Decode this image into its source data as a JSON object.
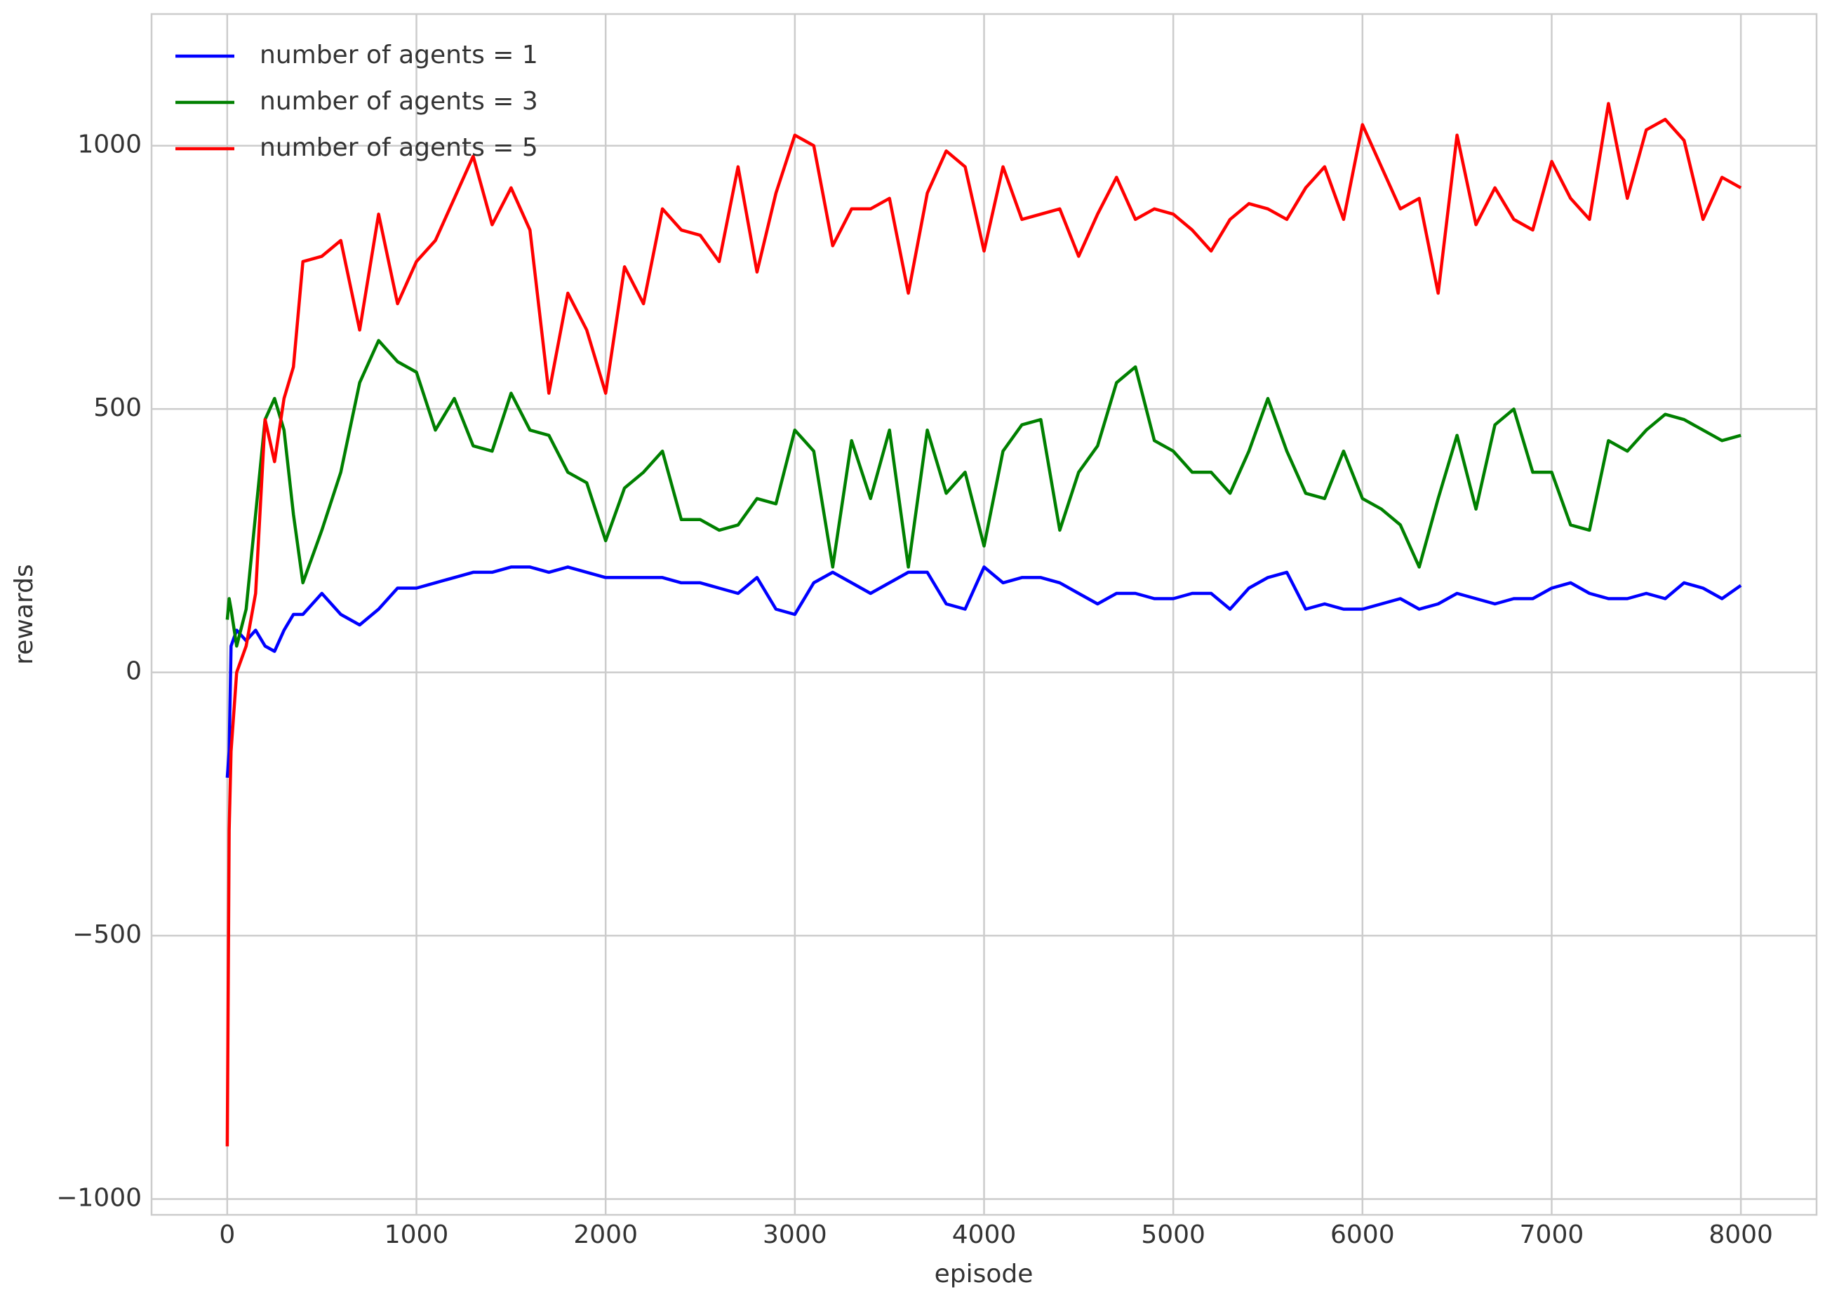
{
  "chart_data": {
    "type": "line",
    "xlabel": "episode",
    "ylabel": "rewards",
    "x": [
      0,
      10,
      20,
      50,
      100,
      150,
      200,
      250,
      300,
      350,
      400,
      500,
      600,
      700,
      800,
      900,
      1000,
      1100,
      1200,
      1300,
      1400,
      1500,
      1600,
      1700,
      1800,
      1900,
      2000,
      2100,
      2200,
      2300,
      2400,
      2500,
      2600,
      2700,
      2800,
      2900,
      3000,
      3100,
      3200,
      3300,
      3400,
      3500,
      3600,
      3700,
      3800,
      3900,
      4000,
      4100,
      4200,
      4300,
      4400,
      4500,
      4600,
      4700,
      4800,
      4900,
      5000,
      5100,
      5200,
      5300,
      5400,
      5500,
      5600,
      5700,
      5800,
      5900,
      6000,
      6100,
      6200,
      6300,
      6400,
      6500,
      6600,
      6700,
      6800,
      6900,
      7000,
      7100,
      7200,
      7300,
      7400,
      7500,
      7600,
      7700,
      7800,
      7900,
      8000
    ],
    "series": [
      {
        "name": "number of agents = 1",
        "color": "#0000ff",
        "values": [
          -200,
          -150,
          50,
          80,
          60,
          80,
          50,
          40,
          80,
          110,
          110,
          150,
          110,
          90,
          120,
          160,
          160,
          170,
          180,
          190,
          190,
          200,
          200,
          190,
          200,
          190,
          180,
          180,
          180,
          180,
          170,
          170,
          160,
          150,
          180,
          120,
          110,
          170,
          190,
          170,
          150,
          170,
          190,
          190,
          130,
          120,
          200,
          170,
          180,
          180,
          170,
          150,
          130,
          150,
          150,
          140,
          140,
          150,
          150,
          120,
          160,
          180,
          190,
          120,
          130,
          120,
          120,
          130,
          140,
          120,
          130,
          150,
          140,
          130,
          140,
          140,
          160,
          170,
          150,
          140,
          140,
          150,
          140,
          170,
          160,
          140,
          165
        ]
      },
      {
        "name": "number of agents = 3",
        "color": "#008000",
        "values": [
          100,
          140,
          120,
          50,
          120,
          300,
          480,
          520,
          460,
          300,
          170,
          270,
          380,
          550,
          630,
          590,
          570,
          460,
          520,
          430,
          420,
          530,
          460,
          450,
          380,
          360,
          250,
          350,
          380,
          420,
          290,
          290,
          270,
          280,
          330,
          320,
          460,
          420,
          200,
          440,
          330,
          460,
          200,
          460,
          340,
          380,
          240,
          420,
          470,
          480,
          270,
          380,
          430,
          550,
          580,
          440,
          420,
          380,
          380,
          340,
          420,
          520,
          420,
          340,
          330,
          420,
          330,
          310,
          280,
          200,
          330,
          450,
          310,
          470,
          500,
          380,
          380,
          280,
          270,
          440,
          420,
          460,
          490,
          480,
          460,
          440,
          450
        ]
      },
      {
        "name": "number of agents = 5",
        "color": "#ff0000",
        "values": [
          -900,
          -300,
          -150,
          0,
          50,
          150,
          480,
          400,
          520,
          580,
          780,
          790,
          820,
          650,
          870,
          700,
          780,
          820,
          900,
          980,
          850,
          920,
          840,
          530,
          720,
          650,
          530,
          770,
          700,
          880,
          840,
          830,
          780,
          960,
          760,
          910,
          1020,
          1000,
          810,
          880,
          880,
          900,
          720,
          910,
          990,
          960,
          800,
          960,
          860,
          870,
          880,
          790,
          870,
          940,
          860,
          880,
          870,
          840,
          800,
          860,
          890,
          880,
          860,
          920,
          960,
          860,
          1040,
          960,
          880,
          900,
          720,
          1020,
          850,
          920,
          860,
          840,
          970,
          900,
          860,
          1080,
          900,
          1030,
          1050,
          1010,
          860,
          940,
          920
        ]
      }
    ],
    "xlim": [
      -400,
      8400
    ],
    "ylim": [
      -1030,
      1250
    ],
    "xticks": [
      0,
      1000,
      2000,
      3000,
      4000,
      5000,
      6000,
      7000,
      8000
    ],
    "yticks": [
      {
        "value": -1000,
        "label": "−1000"
      },
      {
        "value": -500,
        "label": "−500"
      },
      0,
      500,
      1000
    ],
    "grid": true,
    "legend": "upper left"
  }
}
